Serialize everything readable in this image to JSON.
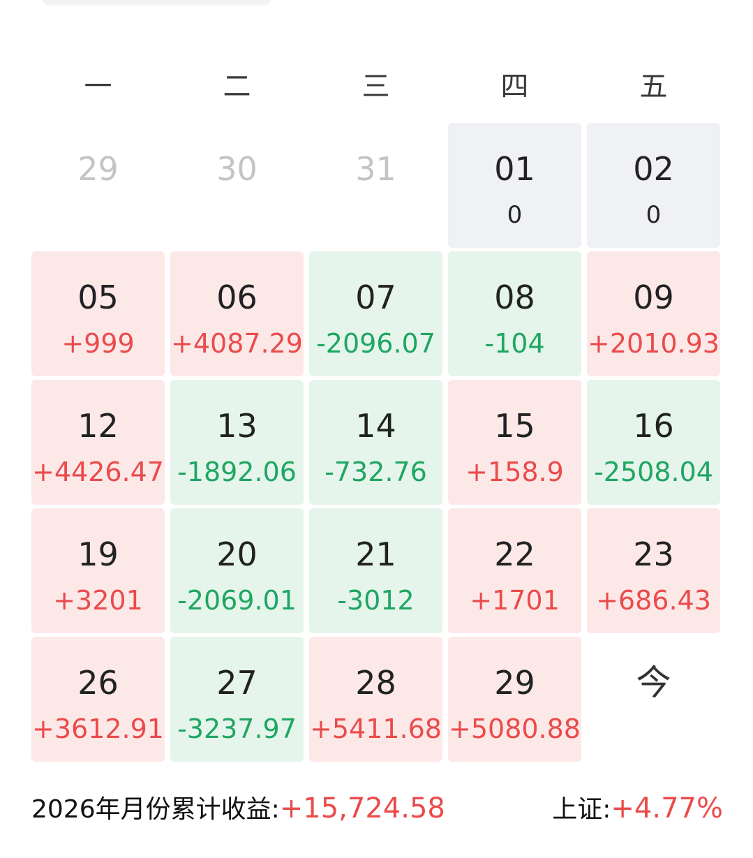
{
  "weekdays": [
    "一",
    "二",
    "三",
    "四",
    "五"
  ],
  "cells": [
    {
      "day": "29",
      "value": "",
      "state": "faded"
    },
    {
      "day": "30",
      "value": "",
      "state": "faded"
    },
    {
      "day": "31",
      "value": "",
      "state": "faded"
    },
    {
      "day": "01",
      "value": "0",
      "state": "zero"
    },
    {
      "day": "02",
      "value": "0",
      "state": "zero"
    },
    {
      "day": "05",
      "value": "+999",
      "state": "pos"
    },
    {
      "day": "06",
      "value": "+4087.29",
      "state": "pos"
    },
    {
      "day": "07",
      "value": "-2096.07",
      "state": "neg"
    },
    {
      "day": "08",
      "value": "-104",
      "state": "neg"
    },
    {
      "day": "09",
      "value": "+2010.93",
      "state": "pos"
    },
    {
      "day": "12",
      "value": "+4426.47",
      "state": "pos"
    },
    {
      "day": "13",
      "value": "-1892.06",
      "state": "neg"
    },
    {
      "day": "14",
      "value": "-732.76",
      "state": "neg"
    },
    {
      "day": "15",
      "value": "+158.9",
      "state": "pos"
    },
    {
      "day": "16",
      "value": "-2508.04",
      "state": "neg"
    },
    {
      "day": "19",
      "value": "+3201",
      "state": "pos"
    },
    {
      "day": "20",
      "value": "-2069.01",
      "state": "neg"
    },
    {
      "day": "21",
      "value": "-3012",
      "state": "neg"
    },
    {
      "day": "22",
      "value": "+1701",
      "state": "pos"
    },
    {
      "day": "23",
      "value": "+686.43",
      "state": "pos"
    },
    {
      "day": "26",
      "value": "+3612.91",
      "state": "pos"
    },
    {
      "day": "27",
      "value": "-3237.97",
      "state": "neg"
    },
    {
      "day": "28",
      "value": "+5411.68",
      "state": "pos"
    },
    {
      "day": "29",
      "value": "+5080.88",
      "state": "pos"
    },
    {
      "day": "今",
      "value": "",
      "state": "today"
    }
  ],
  "summary": {
    "label": "2026年月份累计收益:",
    "value": "+15,724.58",
    "index_label": "上证:",
    "index_value": "+4.77%"
  },
  "colors": {
    "positive": "#ea4b4b",
    "negative": "#1fa662",
    "positive_bg": "#fde8e8",
    "negative_bg": "#e5f5ec",
    "zero_bg": "#f0f1f4"
  }
}
